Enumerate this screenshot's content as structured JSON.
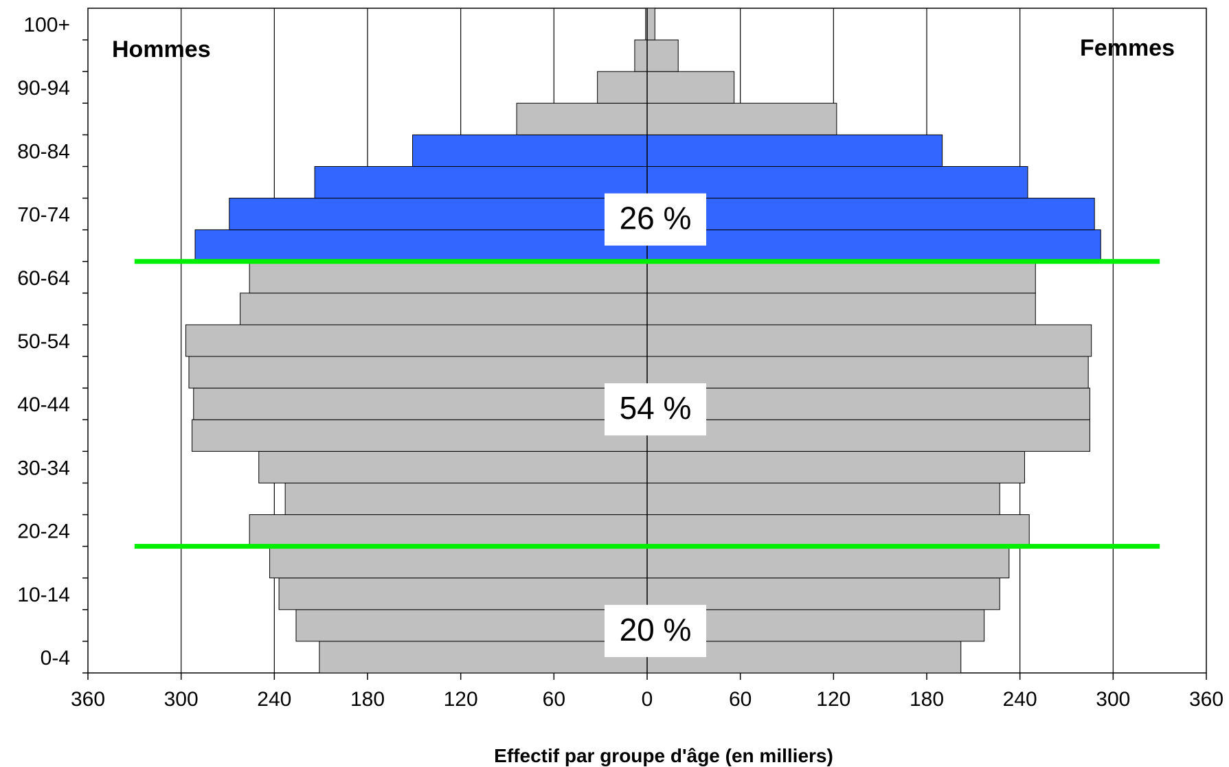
{
  "chart_data": {
    "type": "bar",
    "orientation": "horizontal",
    "subtype": "population-pyramid",
    "xlabel": "Effectif par groupe d'âge (en milliers)",
    "xlim": [
      -360,
      360
    ],
    "x_ticks": [
      -360,
      -300,
      -240,
      -180,
      -120,
      -60,
      0,
      60,
      120,
      180,
      240,
      300,
      360
    ],
    "x_tick_labels": [
      "360",
      "300",
      "240",
      "180",
      "120",
      "60",
      "0",
      "60",
      "120",
      "180",
      "240",
      "300",
      "360"
    ],
    "grid": "vertical",
    "age_groups": [
      "0-4",
      "5-9",
      "10-14",
      "15-19",
      "20-24",
      "25-29",
      "30-34",
      "35-39",
      "40-44",
      "45-49",
      "50-54",
      "55-59",
      "60-64",
      "65-69",
      "70-74",
      "75-79",
      "80-84",
      "85-89",
      "90-94",
      "95-99",
      "100+"
    ],
    "y_tick_labels": [
      "0-4",
      "",
      "10-14",
      "",
      "20-24",
      "",
      "30-34",
      "",
      "40-44",
      "",
      "50-54",
      "",
      "60-64",
      "",
      "70-74",
      "",
      "80-84",
      "",
      "90-94",
      "",
      "100+"
    ],
    "series": [
      {
        "name": "Hommes",
        "side": "left",
        "values": [
          211,
          226,
          237,
          243,
          256,
          233,
          250,
          293,
          292,
          295,
          297,
          262,
          256,
          291,
          269,
          214,
          151,
          84,
          32,
          8,
          1
        ]
      },
      {
        "name": "Femmes",
        "side": "right",
        "values": [
          202,
          217,
          227,
          233,
          246,
          227,
          243,
          285,
          285,
          284,
          286,
          250,
          250,
          292,
          288,
          245,
          190,
          122,
          56,
          20,
          5
        ]
      }
    ],
    "highlight": {
      "age_range_first_index": 13,
      "age_range_last_index": 16,
      "color": "#3366ff"
    },
    "base_color": "#c0c0c0",
    "separators": {
      "color": "#00ee00",
      "after_index": [
        3,
        12
      ]
    },
    "annotations": [
      {
        "text": "20 %",
        "group_index": 1
      },
      {
        "text": "54 %",
        "group_index": 8
      },
      {
        "text": "26 %",
        "group_index": 14
      }
    ]
  }
}
